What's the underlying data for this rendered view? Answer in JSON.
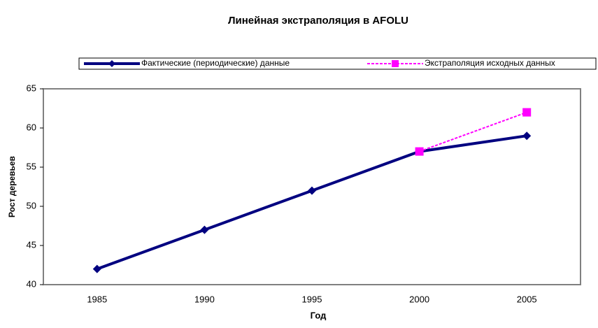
{
  "chart_data": {
    "type": "line",
    "title": "Линейная экстраполяция в AFOLU",
    "x_label": "Год",
    "y_label": "Рост деревьев",
    "categories": [
      "1985",
      "1990",
      "1995",
      "2000",
      "2005"
    ],
    "series": [
      {
        "name": "Фактические (периодические) данные",
        "color": "#000080",
        "marker": "diamond",
        "dashed": false,
        "values": [
          42,
          47,
          52,
          57,
          59
        ]
      },
      {
        "name": "Экстраполяция исходных данных",
        "color": "#ff00ff",
        "marker": "square",
        "dashed": true,
        "values": [
          null,
          null,
          null,
          57,
          62
        ]
      }
    ],
    "ylim": [
      40,
      65
    ],
    "yticks": [
      40,
      45,
      50,
      55,
      60,
      65
    ],
    "grid": false,
    "legend": "top"
  }
}
